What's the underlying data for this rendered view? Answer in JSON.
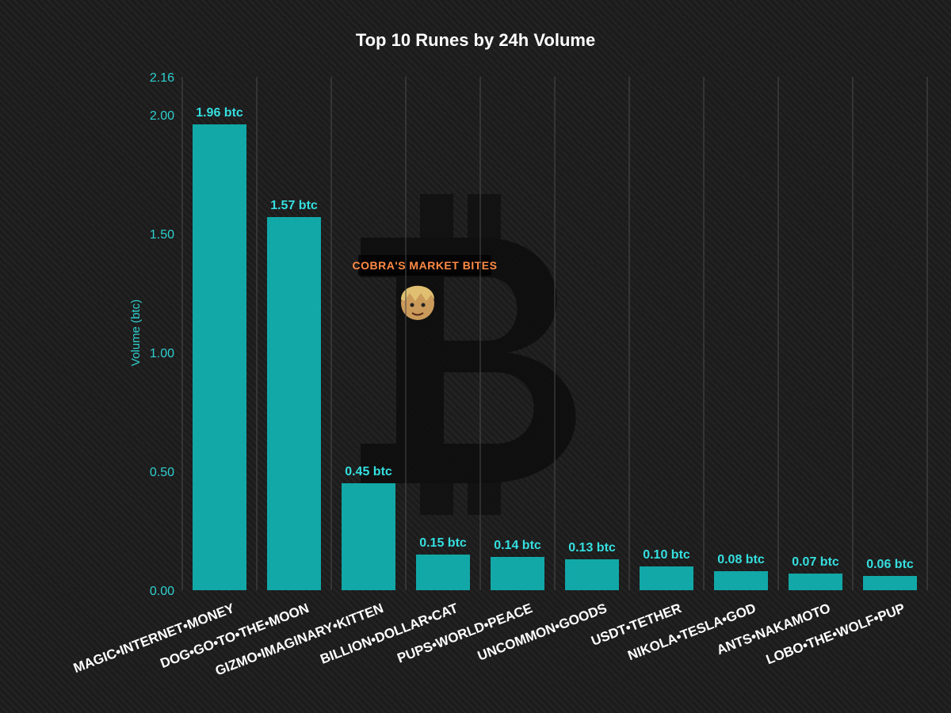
{
  "colors": {
    "bar": "#12a8a8",
    "data_label": "#35dfe0",
    "axis_text": "#2fd0d0",
    "title": "#ffffff",
    "grid": "#4a4a4a",
    "background": "#1c1c1c"
  },
  "watermark": {
    "text": "COBRA'S MARKET BITES",
    "icons": [
      "bitcoin-logo-icon",
      "avatar-icon"
    ]
  },
  "chart_data": {
    "type": "bar",
    "title": "Top 10 Runes by 24h Volume",
    "xlabel": "",
    "ylabel": "Volume (btc)",
    "ylim": [
      0,
      2.16
    ],
    "yticks": [
      0.0,
      0.5,
      1.0,
      1.5,
      2.0,
      2.16
    ],
    "ytick_labels": [
      "0.00",
      "0.50",
      "1.00",
      "1.50",
      "2.00",
      "2.16"
    ],
    "grid": "vertical",
    "categories": [
      "MAGIC•INTERNET•MONEY",
      "DOG•GO•TO•THE•MOON",
      "GIZMO•IMAGINARY•KITTEN",
      "BILLION•DOLLAR•CAT",
      "PUPS•WORLD•PEACE",
      "UNCOMMON•GOODS",
      "USDT•TETHER",
      "NIKOLA•TESLA•GOD",
      "ANTS•NAKAMOTO",
      "LOBO•THE•WOLF•PUP"
    ],
    "values": [
      1.96,
      1.57,
      0.45,
      0.15,
      0.14,
      0.13,
      0.1,
      0.08,
      0.07,
      0.06
    ],
    "data_labels": [
      "1.96 btc",
      "1.57 btc",
      "0.45 btc",
      "0.15 btc",
      "0.14 btc",
      "0.13 btc",
      "0.10 btc",
      "0.08 btc",
      "0.07 btc",
      "0.06 btc"
    ]
  }
}
